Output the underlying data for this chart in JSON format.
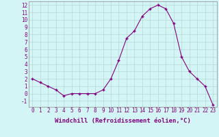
{
  "x": [
    0,
    1,
    2,
    3,
    4,
    5,
    6,
    7,
    8,
    9,
    10,
    11,
    12,
    13,
    14,
    15,
    16,
    17,
    18,
    19,
    20,
    21,
    22,
    23
  ],
  "y": [
    2.0,
    1.5,
    1.0,
    0.5,
    -0.3,
    0.0,
    0.0,
    0.0,
    0.0,
    0.5,
    2.0,
    4.5,
    7.5,
    8.5,
    10.5,
    11.5,
    12.0,
    11.5,
    9.5,
    5.0,
    3.0,
    2.0,
    1.0,
    -1.5
  ],
  "line_color": "#800080",
  "marker": "+",
  "markersize": 3.5,
  "markeredgewidth": 1.0,
  "bg_color": "#d4f5f5",
  "grid_color": "#b8d8d8",
  "xlabel": "Windchill (Refroidissement éolien,°C)",
  "xlim": [
    -0.5,
    23.5
  ],
  "ylim": [
    -1.8,
    12.5
  ],
  "yticks": [
    -1,
    0,
    1,
    2,
    3,
    4,
    5,
    6,
    7,
    8,
    9,
    10,
    11,
    12
  ],
  "xticks": [
    0,
    1,
    2,
    3,
    4,
    5,
    6,
    7,
    8,
    9,
    10,
    11,
    12,
    13,
    14,
    15,
    16,
    17,
    18,
    19,
    20,
    21,
    22,
    23
  ],
  "tick_fontsize": 5.5,
  "xlabel_fontsize": 6.5,
  "spine_color": "#999999"
}
